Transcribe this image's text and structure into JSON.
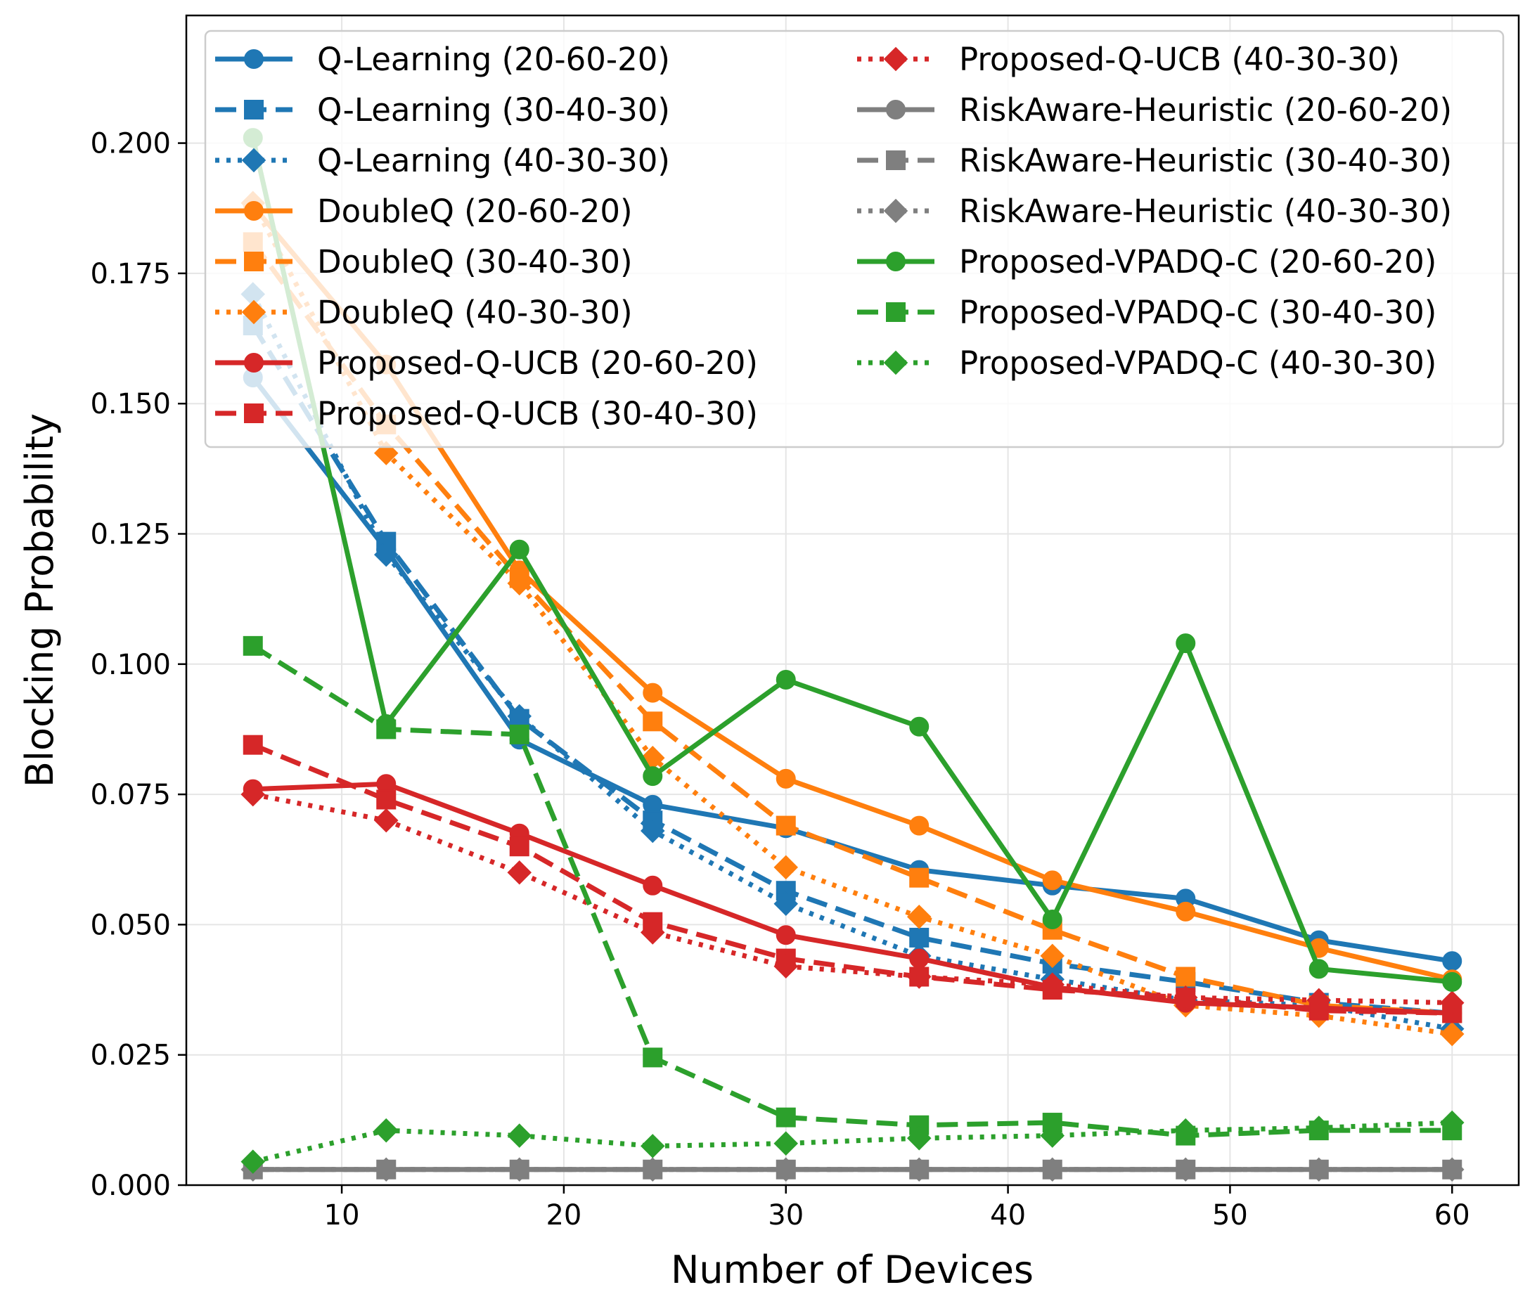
{
  "chart_data": {
    "type": "line",
    "title": "",
    "xlabel": "Number of Devices",
    "ylabel": "Blocking Probability",
    "xlim": [
      3,
      63
    ],
    "ylim": [
      0,
      0.2245
    ],
    "grid": true,
    "legend_position": "top",
    "x": [
      6,
      12,
      18,
      24,
      30,
      36,
      42,
      48,
      54,
      60
    ],
    "x_ticks": [
      10,
      20,
      30,
      40,
      50,
      60
    ],
    "x_tick_labels": [
      "10",
      "20",
      "30",
      "40",
      "50",
      "60"
    ],
    "y_ticks": [
      0,
      0.025,
      0.05,
      0.075,
      0.1,
      0.125,
      0.15,
      0.175,
      0.2
    ],
    "y_tick_labels": [
      "0.000",
      "0.025",
      "0.050",
      "0.075",
      "0.100",
      "0.125",
      "0.150",
      "0.175",
      "0.200"
    ],
    "series": [
      {
        "name": "Q-Learning (20-60-20)",
        "color": "#1f77b4",
        "linestyle": "solid",
        "marker": "circle",
        "values": [
          0.155,
          0.122,
          0.0855,
          0.073,
          0.0685,
          0.0605,
          0.0575,
          0.055,
          0.047,
          0.043
        ]
      },
      {
        "name": "Q-Learning (30-40-30)",
        "color": "#1f77b4",
        "linestyle": "dashed",
        "marker": "square",
        "values": [
          0.165,
          0.1235,
          0.0895,
          0.07,
          0.0565,
          0.0475,
          0.0425,
          0.039,
          0.035,
          0.033
        ]
      },
      {
        "name": "Q-Learning (40-30-30)",
        "color": "#1f77b4",
        "linestyle": "dotted",
        "marker": "diamond",
        "values": [
          0.171,
          0.121,
          0.09,
          0.068,
          0.054,
          0.044,
          0.0395,
          0.0355,
          0.0345,
          0.03
        ]
      },
      {
        "name": "DoubleQ (20-60-20)",
        "color": "#ff7f0e",
        "linestyle": "solid",
        "marker": "circle",
        "values": [
          0.188,
          0.1575,
          0.118,
          0.0945,
          0.078,
          0.069,
          0.0585,
          0.0525,
          0.0455,
          0.0395
        ]
      },
      {
        "name": "DoubleQ (30-40-30)",
        "color": "#ff7f0e",
        "linestyle": "dashed",
        "marker": "square",
        "values": [
          0.181,
          0.146,
          0.1165,
          0.089,
          0.069,
          0.059,
          0.049,
          0.04,
          0.0345,
          0.033
        ]
      },
      {
        "name": "DoubleQ (40-30-30)",
        "color": "#ff7f0e",
        "linestyle": "dotted",
        "marker": "diamond",
        "values": [
          0.1885,
          0.1405,
          0.1155,
          0.082,
          0.061,
          0.0515,
          0.044,
          0.0345,
          0.0325,
          0.029
        ]
      },
      {
        "name": "Proposed-Q-UCB (20-60-20)",
        "color": "#d62728",
        "linestyle": "solid",
        "marker": "circle",
        "values": [
          0.076,
          0.077,
          0.0675,
          0.0575,
          0.048,
          0.0435,
          0.038,
          0.035,
          0.034,
          0.033
        ]
      },
      {
        "name": "Proposed-Q-UCB (30-40-30)",
        "color": "#d62728",
        "linestyle": "dashed",
        "marker": "square",
        "values": [
          0.0845,
          0.074,
          0.065,
          0.0505,
          0.0435,
          0.04,
          0.0375,
          0.036,
          0.0335,
          0.033
        ]
      },
      {
        "name": "Proposed-Q-UCB (40-30-30)",
        "color": "#d62728",
        "linestyle": "dotted",
        "marker": "diamond",
        "values": [
          0.075,
          0.07,
          0.06,
          0.0485,
          0.042,
          0.04,
          0.0385,
          0.036,
          0.0355,
          0.035
        ]
      },
      {
        "name": "RiskAware-Heuristic (20-60-20)",
        "color": "#7f7f7f",
        "linestyle": "solid",
        "marker": "circle",
        "values": [
          0.003,
          0.003,
          0.003,
          0.003,
          0.003,
          0.003,
          0.003,
          0.003,
          0.003,
          0.003
        ]
      },
      {
        "name": "RiskAware-Heuristic (30-40-30)",
        "color": "#7f7f7f",
        "linestyle": "dashed",
        "marker": "square",
        "values": [
          0.003,
          0.003,
          0.003,
          0.003,
          0.003,
          0.003,
          0.003,
          0.003,
          0.003,
          0.003
        ]
      },
      {
        "name": "RiskAware-Heuristic (40-30-30)",
        "color": "#7f7f7f",
        "linestyle": "dotted",
        "marker": "diamond",
        "values": [
          0.003,
          0.003,
          0.003,
          0.003,
          0.003,
          0.003,
          0.003,
          0.003,
          0.003,
          0.003
        ]
      },
      {
        "name": "Proposed-VPADQ-C (20-60-20)",
        "color": "#2ca02c",
        "linestyle": "solid",
        "marker": "circle",
        "values": [
          0.201,
          0.0885,
          0.122,
          0.0785,
          0.097,
          0.088,
          0.051,
          0.104,
          0.0415,
          0.039
        ]
      },
      {
        "name": "Proposed-VPADQ-C (30-40-30)",
        "color": "#2ca02c",
        "linestyle": "dashed",
        "marker": "square",
        "values": [
          0.1035,
          0.0875,
          0.0865,
          0.0245,
          0.013,
          0.0115,
          0.012,
          0.0095,
          0.0105,
          0.0105
        ]
      },
      {
        "name": "Proposed-VPADQ-C (40-30-30)",
        "color": "#2ca02c",
        "linestyle": "dotted",
        "marker": "diamond",
        "values": [
          0.0045,
          0.0105,
          0.0095,
          0.0075,
          0.008,
          0.009,
          0.0095,
          0.0105,
          0.011,
          0.012
        ]
      }
    ]
  }
}
